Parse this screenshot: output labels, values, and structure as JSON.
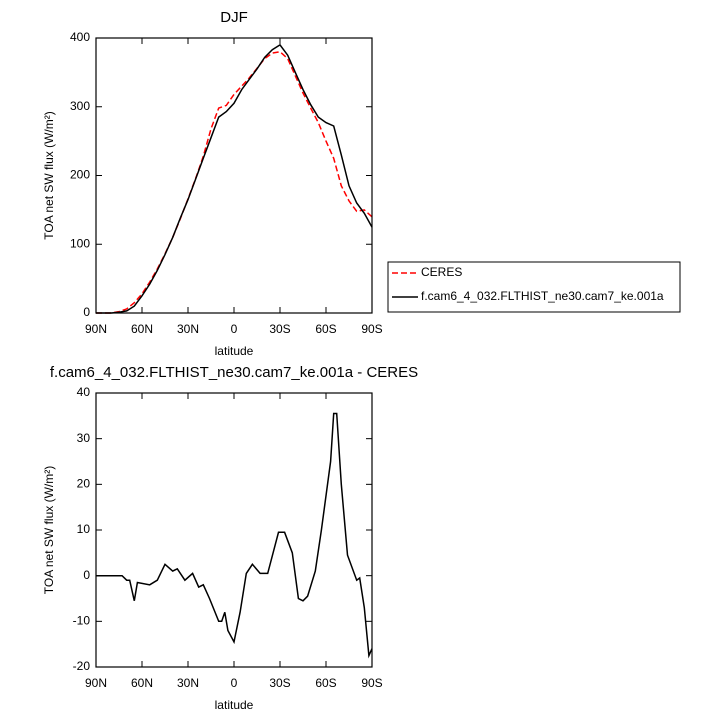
{
  "chart_data": [
    {
      "type": "line",
      "title": "DJF",
      "xlabel": "latitude",
      "ylabel": "TOA net SW flux (W/m²)",
      "x": [
        90,
        85,
        80,
        75,
        70,
        65,
        60,
        55,
        50,
        45,
        40,
        35,
        30,
        25,
        20,
        15,
        10,
        5,
        0,
        -5,
        -10,
        -15,
        -20,
        -25,
        -30,
        -35,
        -40,
        -45,
        -50,
        -55,
        -60,
        -65,
        -70,
        -75,
        -80,
        -85,
        -90
      ],
      "series": [
        {
          "name": "CERES",
          "color": "#ff0000",
          "linestyle": "dashed",
          "values": [
            0,
            0,
            0,
            2,
            6,
            15,
            28,
            45,
            64,
            86,
            110,
            137,
            166,
            196,
            228,
            268,
            298,
            302,
            318,
            330,
            342,
            356,
            370,
            378,
            380,
            370,
            345,
            320,
            298,
            277,
            250,
            225,
            185,
            163,
            148,
            150,
            140
          ]
        },
        {
          "name": "f.cam6_4_032.FLTHIST_ne30.cam7_ke.001a",
          "color": "#000000",
          "linestyle": "solid",
          "values": [
            0,
            0,
            0,
            1,
            3,
            10,
            25,
            42,
            62,
            85,
            110,
            138,
            165,
            195,
            225,
            255,
            285,
            293,
            305,
            325,
            340,
            355,
            372,
            383,
            390,
            375,
            350,
            325,
            303,
            285,
            277,
            272,
            230,
            185,
            160,
            145,
            125
          ]
        }
      ],
      "xlim": [
        90,
        -90
      ],
      "xticks": [
        {
          "value": 90,
          "label": "90N"
        },
        {
          "value": 60,
          "label": "60N"
        },
        {
          "value": 30,
          "label": "30N"
        },
        0,
        {
          "value": -30,
          "label": "30S"
        },
        {
          "value": -60,
          "label": "60S"
        },
        {
          "value": -90,
          "label": "90S"
        }
      ],
      "ylim": [
        0,
        400
      ],
      "yticks": [
        0,
        100,
        200,
        300,
        400
      ],
      "legend": "right"
    },
    {
      "type": "line",
      "title": "f.cam6_4_032.FLTHIST_ne30.cam7_ke.001a - CERES",
      "xlabel": "latitude",
      "ylabel": "TOA net SW flux (W/m²)",
      "x": [
        90,
        73,
        70,
        68,
        65,
        63,
        55,
        50,
        45,
        40,
        37,
        32,
        27,
        23,
        20,
        16,
        10,
        8,
        6,
        4,
        0,
        -4,
        -8,
        -12,
        -17,
        -22,
        -29,
        -33,
        -38,
        -42,
        -45,
        -48,
        -53,
        -57,
        -63,
        -65,
        -67,
        -70,
        -74,
        -80,
        -82,
        -85,
        -88,
        -90
      ],
      "series": [
        {
          "color": "#000000",
          "linestyle": "solid",
          "values": [
            0,
            0,
            -1,
            -1,
            -5.5,
            -1.5,
            -2,
            -1,
            2.5,
            1,
            1.5,
            -1,
            0.5,
            -2.5,
            -2,
            -5,
            -10,
            -10,
            -8,
            -12,
            -14.5,
            -8,
            0.5,
            2.5,
            0.5,
            0.5,
            9.5,
            9.5,
            5,
            -5,
            -5.5,
            -4.5,
            1,
            10,
            25,
            35.5,
            35.5,
            20,
            4.5,
            -1,
            -0.5,
            -7,
            -17.5,
            -16
          ]
        }
      ],
      "xlim": [
        90,
        -90
      ],
      "xticks": [
        {
          "value": 90,
          "label": "90N"
        },
        {
          "value": 60,
          "label": "60N"
        },
        {
          "value": 30,
          "label": "30N"
        },
        0,
        {
          "value": -30,
          "label": "30S"
        },
        {
          "value": -60,
          "label": "60S"
        },
        {
          "value": -90,
          "label": "90S"
        }
      ],
      "ylim": [
        -20,
        40
      ],
      "yticks": [
        -20,
        -10,
        0,
        10,
        20,
        30,
        40
      ]
    }
  ]
}
